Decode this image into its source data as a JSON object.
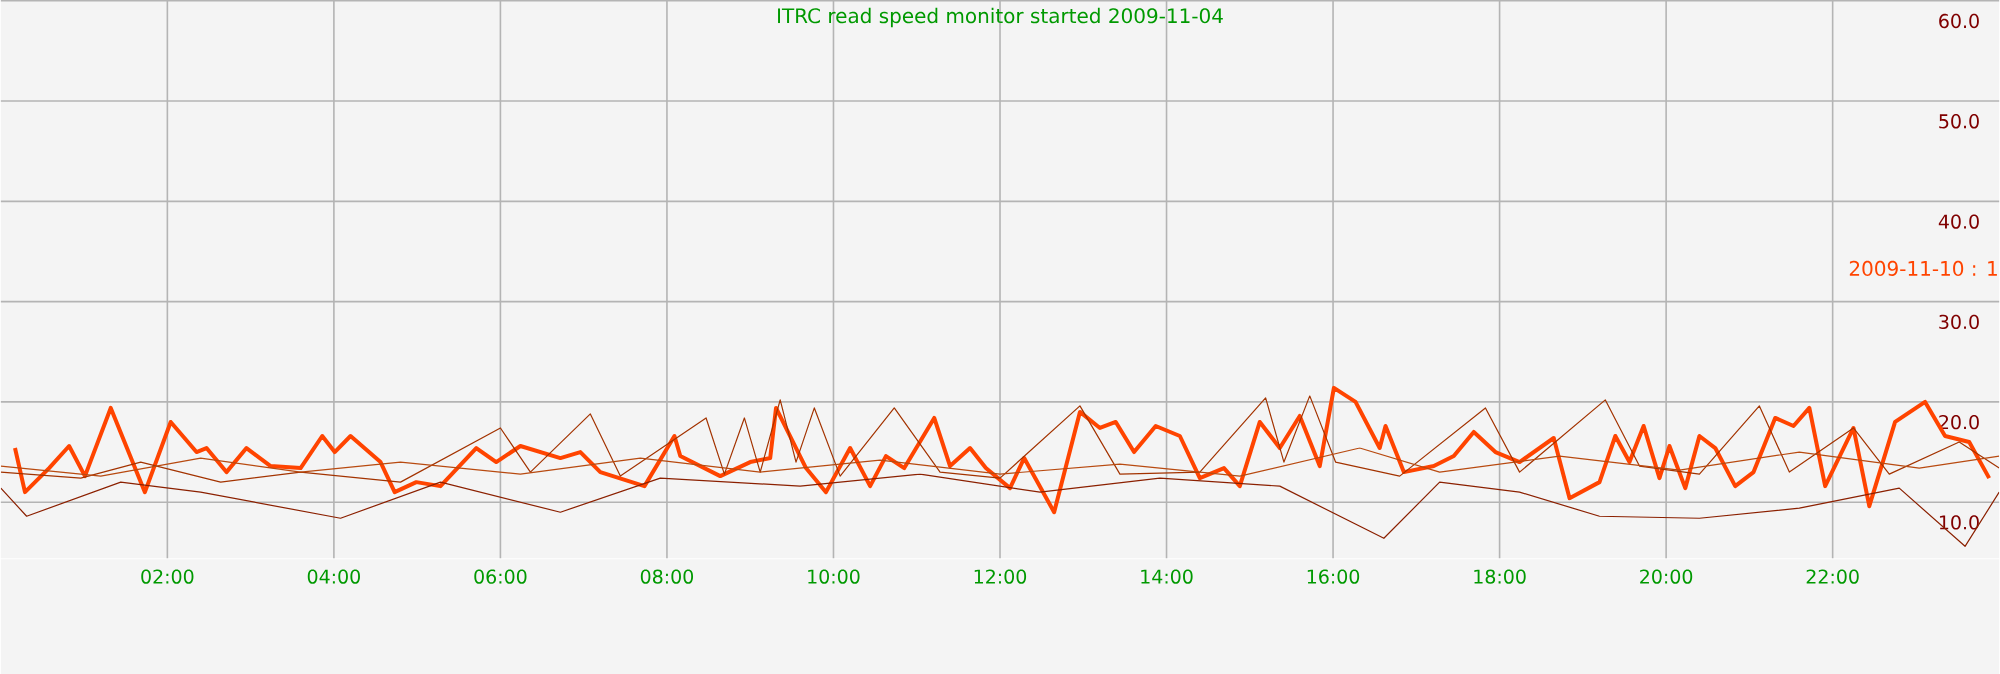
{
  "chart_data": {
    "type": "line",
    "title": "ITRC read speed monitor started 2009-11-04",
    "xlim": [
      0,
      24
    ],
    "ylim": [
      4.4,
      60
    ],
    "xticks": [
      {
        "value": 2,
        "label": "02:00"
      },
      {
        "value": 4,
        "label": "04:00"
      },
      {
        "value": 6,
        "label": "06:00"
      },
      {
        "value": 8,
        "label": "08:00"
      },
      {
        "value": 10,
        "label": "10:00"
      },
      {
        "value": 12,
        "label": "12:00"
      },
      {
        "value": 14,
        "label": "14:00"
      },
      {
        "value": 16,
        "label": "16:00"
      },
      {
        "value": 18,
        "label": "18:00"
      },
      {
        "value": 20,
        "label": "20:00"
      },
      {
        "value": 22,
        "label": "22:00"
      }
    ],
    "yticks": [
      {
        "value": 10,
        "label": "10.0"
      },
      {
        "value": 20,
        "label": "20.0"
      },
      {
        "value": 30,
        "label": "30.0"
      },
      {
        "value": 40,
        "label": "40.0"
      },
      {
        "value": 50,
        "label": "50.0"
      },
      {
        "value": 60,
        "label": "60.0"
      }
    ],
    "grid": true,
    "legend": false,
    "marker": "none",
    "line_style": "solid",
    "series": [
      {
        "name": "2009-11-10 : 1",
        "color": "#ff4400",
        "x": [
          0.17,
          0.29,
          0.58,
          0.82,
          1.01,
          1.32,
          1.73,
          2.04,
          2.35,
          2.47,
          2.71,
          2.95,
          3.24,
          3.6,
          3.86,
          4.01,
          4.2,
          4.56,
          4.73,
          4.99,
          5.28,
          5.71,
          5.95,
          6.24,
          6.72,
          6.96,
          7.2,
          7.73,
          8.09,
          8.16,
          8.64,
          9,
          9.24,
          9.31,
          9.67,
          9.91,
          10.2,
          10.44,
          10.63,
          10.85,
          11.21,
          11.4,
          11.64,
          11.83,
          12.12,
          12.29,
          12.65,
          12.96,
          13.2,
          13.39,
          13.61,
          13.87,
          14.16,
          14.4,
          14.69,
          14.88,
          15.12,
          15.36,
          15.6,
          15.84,
          16.01,
          16.27,
          16.56,
          16.63,
          16.85,
          17.21,
          17.45,
          17.69,
          17.95,
          18.24,
          18.65,
          18.84,
          19.2,
          19.39,
          19.56,
          19.73,
          19.92,
          20.04,
          20.23,
          20.4,
          20.59,
          20.83,
          21.05,
          21.31,
          21.53,
          21.72,
          21.91,
          22.25,
          22.44,
          22.75,
          23.11,
          23.35,
          23.64,
          23.88
        ],
        "values": [
          15.4,
          11,
          13.4,
          15.6,
          12.6,
          19.4,
          11,
          18,
          15,
          15.4,
          13,
          15.4,
          13.6,
          13.4,
          16.6,
          15,
          16.6,
          14,
          11,
          12,
          11.6,
          15.4,
          14,
          15.6,
          14.4,
          15,
          13,
          11.6,
          16.6,
          14.6,
          12.6,
          14,
          14.4,
          19.4,
          13.4,
          11,
          15.4,
          11.6,
          14.6,
          13.4,
          18.4,
          13.6,
          15.4,
          13.4,
          11.4,
          14.4,
          9,
          19,
          17.4,
          18,
          15,
          17.6,
          16.6,
          12.4,
          13.4,
          11.6,
          18,
          15.4,
          18.6,
          13.6,
          21.4,
          20,
          15.4,
          17.6,
          13,
          13.6,
          14.6,
          17,
          15,
          14,
          16.4,
          10.4,
          12,
          16.6,
          14,
          17.6,
          12.4,
          15.6,
          11.4,
          16.6,
          15.4,
          11.6,
          13,
          18.4,
          17.6,
          19.4,
          11.6,
          17.4,
          9.6,
          18,
          20,
          16.6,
          16,
          12.4
        ]
      },
      {
        "color": "#a33300",
        "x": [
          0,
          0.96,
          1.68,
          2.64,
          3.6,
          4.8,
          6,
          6.36,
          7.08,
          7.44,
          8.47,
          8.69,
          8.93,
          9.12,
          9.36,
          9.55,
          9.77,
          10.08,
          10.73,
          11.28,
          12,
          12.96,
          13.44,
          14.4,
          15.19,
          15.41,
          15.72,
          16.03,
          16.8,
          17.83,
          18.24,
          19.27,
          19.68,
          20.4,
          21.12,
          21.48,
          22.25,
          22.68,
          23.52,
          24
        ],
        "values": [
          13,
          12.4,
          14,
          12,
          13,
          12,
          17.4,
          13,
          18.8,
          12.6,
          18.4,
          12.8,
          18.4,
          13,
          20.2,
          14,
          19.4,
          12.6,
          19.4,
          13,
          12.4,
          19.6,
          12.8,
          13,
          20.4,
          14,
          20.6,
          14,
          12.6,
          19.4,
          13,
          20.2,
          13.6,
          12.8,
          19.6,
          13,
          17.4,
          12.8,
          16,
          13.4
        ]
      },
      {
        "color": "#8b2000",
        "x": [
          0,
          0.31,
          1.44,
          2.4,
          4.08,
          5.28,
          6.72,
          7.92,
          9.6,
          11.04,
          12.48,
          13.92,
          15.36,
          16.61,
          17.28,
          18.24,
          19.2,
          20.4,
          21.6,
          22.8,
          23.59,
          24
        ],
        "values": [
          11.4,
          8.6,
          12,
          11,
          8.4,
          12,
          9,
          12.4,
          11.6,
          12.8,
          11,
          12.4,
          11.6,
          6.4,
          12,
          11,
          8.6,
          8.4,
          9.4,
          11.4,
          5.6,
          11
        ]
      },
      {
        "color": "#b84a10",
        "x": [
          0,
          1.2,
          2.4,
          3.6,
          4.8,
          6.24,
          7.68,
          9.12,
          10.56,
          12,
          13.44,
          14.88,
          16.32,
          17.28,
          18.72,
          20.16,
          21.6,
          23.04,
          24
        ],
        "values": [
          13.6,
          12.6,
          14.4,
          13,
          14,
          12.8,
          14.4,
          13,
          14.2,
          12.8,
          13.8,
          12.6,
          15.4,
          13,
          14.6,
          13.2,
          15,
          13.4,
          14.6
        ]
      }
    ]
  }
}
